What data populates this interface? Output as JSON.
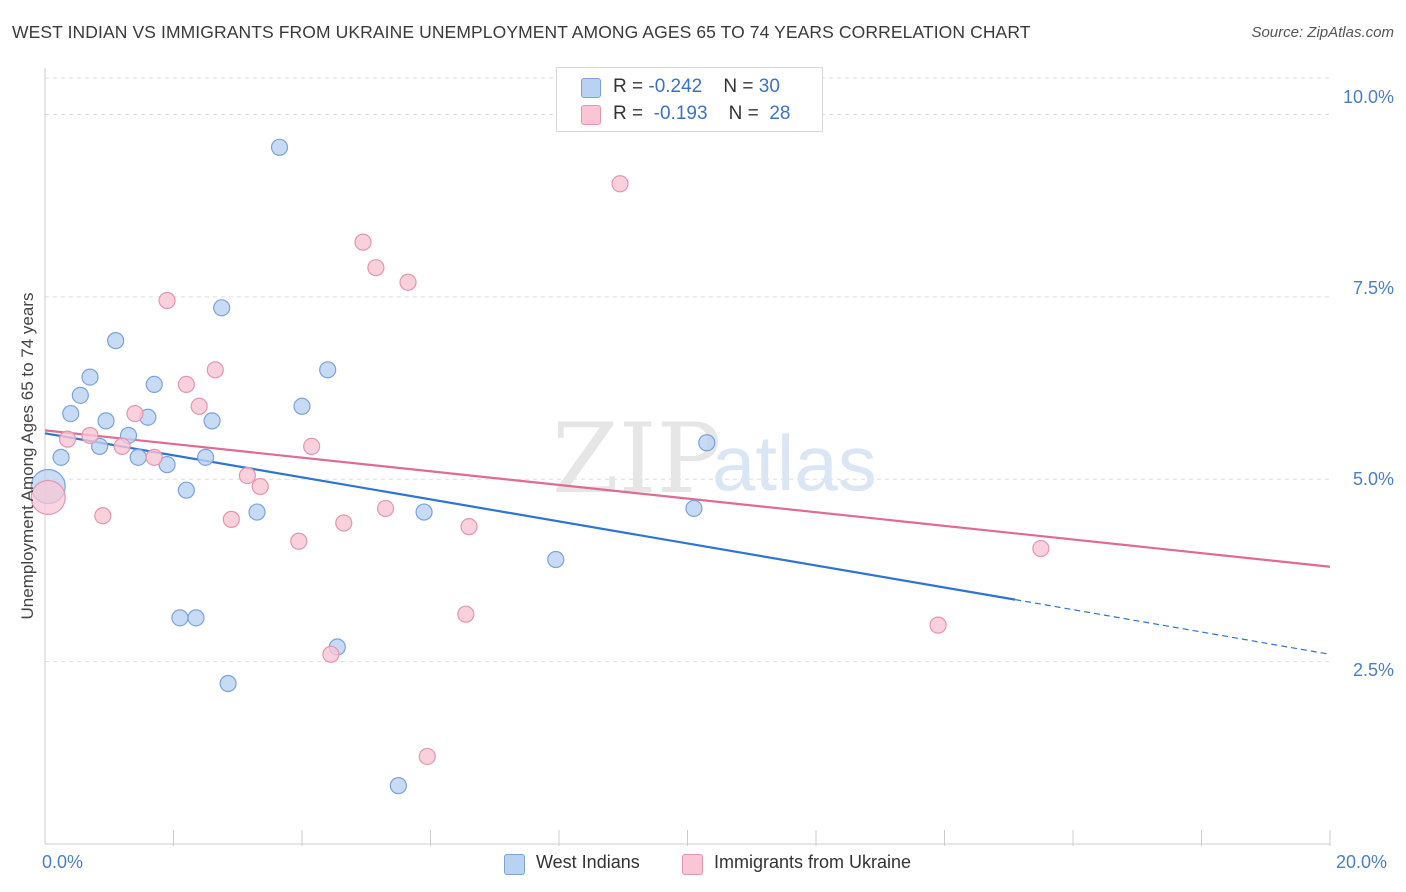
{
  "header": {
    "title": "WEST INDIAN VS IMMIGRANTS FROM UKRAINE UNEMPLOYMENT AMONG AGES 65 TO 74 YEARS CORRELATION CHART",
    "source": "Source: ZipAtlas.com"
  },
  "legend": {
    "rows": [
      {
        "r_label": "R = ",
        "r_value": "-0.242",
        "n_label": "N = ",
        "n_value": "30"
      },
      {
        "r_label": "R = ",
        "r_value": "-0.193",
        "n_label": "N = ",
        "n_value": "28"
      }
    ]
  },
  "bottom_legend": [
    "West Indians",
    "Immigrants from Ukraine"
  ],
  "watermark": {
    "zip": "ZIP",
    "atlas": "atlas"
  },
  "colors": {
    "blue_fill": "#b9d2f2",
    "blue_stroke": "#7aa3dc",
    "blue_line": "#2e74d2",
    "pink_fill": "#f8c6d5",
    "pink_stroke": "#e894ae",
    "pink_line": "#e06a93",
    "grid": "#dddddd",
    "axis_label": "#4a7fc8"
  },
  "chart_data": {
    "type": "scatter",
    "title": "WEST INDIAN VS IMMIGRANTS FROM UKRAINE UNEMPLOYMENT AMONG AGES 65 TO 74 YEARS CORRELATION CHART",
    "xlabel": "",
    "ylabel": "Unemployment Among Ages 65 to 74 years",
    "xlim": [
      0,
      20
    ],
    "ylim": [
      0,
      10.5
    ],
    "x_tick_labels": [
      "0.0%",
      "20.0%"
    ],
    "y_ticks": [
      2.5,
      5.0,
      7.5,
      10.0
    ],
    "y_tick_labels": [
      "2.5%",
      "5.0%",
      "7.5%",
      "10.0%"
    ],
    "grid": true,
    "series": [
      {
        "name": "West Indians",
        "r": -0.242,
        "n": 30,
        "trend": {
          "x0": 0,
          "y0": 5.63,
          "x1": 15.1,
          "y1": 3.35,
          "dash_to_x": 20,
          "dash_to_y": 2.6
        },
        "points": [
          {
            "x": 0.05,
            "y": 4.9,
            "big": true
          },
          {
            "x": 0.25,
            "y": 5.3
          },
          {
            "x": 0.4,
            "y": 5.9
          },
          {
            "x": 0.55,
            "y": 6.15
          },
          {
            "x": 0.7,
            "y": 6.4
          },
          {
            "x": 0.85,
            "y": 5.45
          },
          {
            "x": 0.95,
            "y": 5.8
          },
          {
            "x": 1.1,
            "y": 6.9
          },
          {
            "x": 1.3,
            "y": 5.6
          },
          {
            "x": 1.45,
            "y": 5.3
          },
          {
            "x": 1.6,
            "y": 5.85
          },
          {
            "x": 1.7,
            "y": 6.3
          },
          {
            "x": 1.9,
            "y": 5.2
          },
          {
            "x": 2.1,
            "y": 3.1
          },
          {
            "x": 2.2,
            "y": 4.85
          },
          {
            "x": 2.35,
            "y": 3.1
          },
          {
            "x": 2.5,
            "y": 5.3
          },
          {
            "x": 2.6,
            "y": 5.8
          },
          {
            "x": 2.75,
            "y": 7.35
          },
          {
            "x": 2.85,
            "y": 2.2
          },
          {
            "x": 3.3,
            "y": 4.55
          },
          {
            "x": 3.65,
            "y": 9.55
          },
          {
            "x": 4.0,
            "y": 6.0
          },
          {
            "x": 4.4,
            "y": 6.5
          },
          {
            "x": 4.55,
            "y": 2.7
          },
          {
            "x": 5.5,
            "y": 0.8
          },
          {
            "x": 5.9,
            "y": 4.55
          },
          {
            "x": 7.95,
            "y": 3.9
          },
          {
            "x": 10.1,
            "y": 4.6
          },
          {
            "x": 10.3,
            "y": 5.5
          }
        ]
      },
      {
        "name": "Immigrants from Ukraine",
        "r": -0.193,
        "n": 28,
        "trend": {
          "x0": 0,
          "y0": 5.67,
          "x1": 20,
          "y1": 3.8
        },
        "points": [
          {
            "x": 0.05,
            "y": 4.75,
            "big": true
          },
          {
            "x": 0.35,
            "y": 5.55
          },
          {
            "x": 0.7,
            "y": 5.6
          },
          {
            "x": 0.9,
            "y": 4.5
          },
          {
            "x": 1.2,
            "y": 5.45
          },
          {
            "x": 1.4,
            "y": 5.9
          },
          {
            "x": 1.7,
            "y": 5.3
          },
          {
            "x": 1.9,
            "y": 7.45
          },
          {
            "x": 2.2,
            "y": 6.3
          },
          {
            "x": 2.4,
            "y": 6.0
          },
          {
            "x": 2.65,
            "y": 6.5
          },
          {
            "x": 2.9,
            "y": 4.45
          },
          {
            "x": 3.15,
            "y": 5.05
          },
          {
            "x": 3.35,
            "y": 4.9
          },
          {
            "x": 3.95,
            "y": 4.15
          },
          {
            "x": 4.15,
            "y": 5.45
          },
          {
            "x": 4.45,
            "y": 2.6
          },
          {
            "x": 4.65,
            "y": 4.4
          },
          {
            "x": 4.95,
            "y": 8.25
          },
          {
            "x": 5.15,
            "y": 7.9
          },
          {
            "x": 5.3,
            "y": 4.6
          },
          {
            "x": 5.65,
            "y": 7.7
          },
          {
            "x": 5.95,
            "y": 1.2
          },
          {
            "x": 6.55,
            "y": 3.15
          },
          {
            "x": 6.6,
            "y": 4.35
          },
          {
            "x": 8.95,
            "y": 9.05
          },
          {
            "x": 13.9,
            "y": 3.0
          },
          {
            "x": 15.5,
            "y": 4.05
          }
        ]
      }
    ]
  }
}
